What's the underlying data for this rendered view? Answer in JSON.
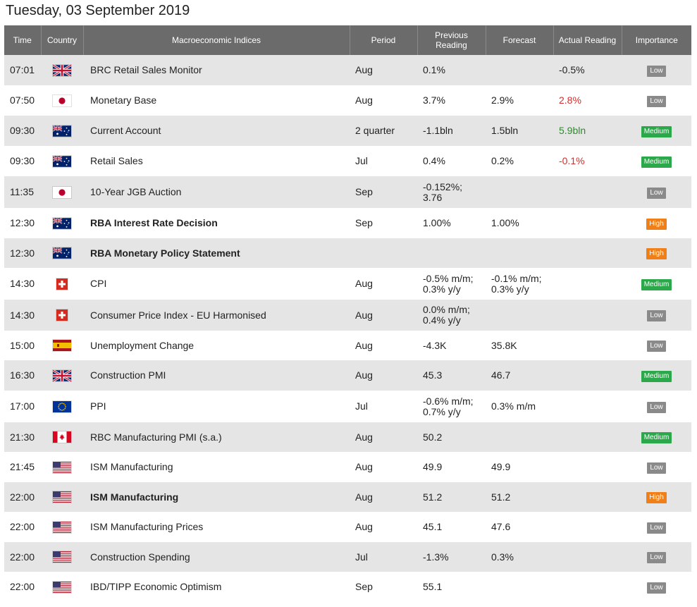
{
  "page": {
    "title": "Tuesday, 03 September 2019"
  },
  "colors": {
    "header_bg": "#6b6b6b",
    "row_alt": "#e5e5e5",
    "negative": "#d12f2f",
    "positive": "#2e8b2e",
    "low": "#8a8a8a",
    "medium": "#2aa84a",
    "high": "#f07f17"
  },
  "table": {
    "headers": {
      "time": "Time",
      "country": "Country",
      "index": "Macroeconomic Indices",
      "period": "Period",
      "previous": "Previous Reading",
      "forecast": "Forecast",
      "actual": "Actual Reading",
      "importance": "Importance"
    },
    "rows": [
      {
        "time": "07:01",
        "flag": "uk",
        "name": "BRC Retail Sales Monitor",
        "bold": false,
        "period": "Aug",
        "previous": "0.1%",
        "forecast": "",
        "actual": "-0.5%",
        "actual_color": "",
        "importance": "Low"
      },
      {
        "time": "07:50",
        "flag": "japan",
        "name": "Monetary Base",
        "bold": false,
        "period": "Aug",
        "previous": "3.7%",
        "forecast": "2.9%",
        "actual": "2.8%",
        "actual_color": "neg",
        "importance": "Low"
      },
      {
        "time": "09:30",
        "flag": "australia",
        "name": "Current Account",
        "bold": false,
        "period": "2 quarter",
        "previous": "-1.1bln",
        "forecast": "1.5bln",
        "actual": "5.9bln",
        "actual_color": "pos",
        "importance": "Medium"
      },
      {
        "time": "09:30",
        "flag": "australia",
        "name": "Retail Sales",
        "bold": false,
        "period": "Jul",
        "previous": "0.4%",
        "forecast": "0.2%",
        "actual": "-0.1%",
        "actual_color": "neg",
        "importance": "Medium"
      },
      {
        "time": "11:35",
        "flag": "japan",
        "name": "10-Year JGB Auction",
        "bold": false,
        "period": "Sep",
        "previous": "-0.152%;\n3.76",
        "forecast": "",
        "actual": "",
        "actual_color": "",
        "importance": "Low"
      },
      {
        "time": "12:30",
        "flag": "australia",
        "name": "RBA Interest Rate Decision",
        "bold": true,
        "period": "Sep",
        "previous": "1.00%",
        "forecast": "1.00%",
        "actual": "",
        "actual_color": "",
        "importance": "High"
      },
      {
        "time": "12:30",
        "flag": "australia",
        "name": "RBA Monetary Policy Statement",
        "bold": true,
        "period": "",
        "previous": "",
        "forecast": "",
        "actual": "",
        "actual_color": "",
        "importance": "High"
      },
      {
        "time": "14:30",
        "flag": "switzerland",
        "name": "CPI",
        "bold": false,
        "period": "Aug",
        "previous": "-0.5% m/m;\n0.3% y/y",
        "forecast": "-0.1% m/m;\n0.3% y/y",
        "actual": "",
        "actual_color": "",
        "importance": "Medium"
      },
      {
        "time": "14:30",
        "flag": "switzerland",
        "name": "Consumer Price Index - EU Harmonised",
        "bold": false,
        "period": "Aug",
        "previous": "0.0% m/m;\n0.4% y/y",
        "forecast": "",
        "actual": "",
        "actual_color": "",
        "importance": "Low"
      },
      {
        "time": "15:00",
        "flag": "spain",
        "name": "Unemployment Change",
        "bold": false,
        "period": "Aug",
        "previous": "-4.3K",
        "forecast": "35.8K",
        "actual": "",
        "actual_color": "",
        "importance": "Low"
      },
      {
        "time": "16:30",
        "flag": "uk",
        "name": "Construction PMI",
        "bold": false,
        "period": "Aug",
        "previous": "45.3",
        "forecast": "46.7",
        "actual": "",
        "actual_color": "",
        "importance": "Medium"
      },
      {
        "time": "17:00",
        "flag": "eu",
        "name": "PPI",
        "bold": false,
        "period": "Jul",
        "previous": "-0.6% m/m;\n0.7% y/y",
        "forecast": "0.3% m/m",
        "actual": "",
        "actual_color": "",
        "importance": "Low"
      },
      {
        "time": "21:30",
        "flag": "canada",
        "name": "RBC Manufacturing PMI (s.a.)",
        "bold": false,
        "period": "Aug",
        "previous": "50.2",
        "forecast": "",
        "actual": "",
        "actual_color": "",
        "importance": "Medium"
      },
      {
        "time": "21:45",
        "flag": "usa",
        "name": "ISM Manufacturing",
        "bold": false,
        "period": "Aug",
        "previous": "49.9",
        "forecast": "49.9",
        "actual": "",
        "actual_color": "",
        "importance": "Low"
      },
      {
        "time": "22:00",
        "flag": "usa",
        "name": "ISM Manufacturing",
        "bold": true,
        "period": "Aug",
        "previous": "51.2",
        "forecast": "51.2",
        "actual": "",
        "actual_color": "",
        "importance": "High"
      },
      {
        "time": "22:00",
        "flag": "usa",
        "name": "ISM Manufacturing Prices",
        "bold": false,
        "period": "Aug",
        "previous": "45.1",
        "forecast": "47.6",
        "actual": "",
        "actual_color": "",
        "importance": "Low"
      },
      {
        "time": "22:00",
        "flag": "usa",
        "name": "Construction Spending",
        "bold": false,
        "period": "Jul",
        "previous": "-1.3%",
        "forecast": "0.3%",
        "actual": "",
        "actual_color": "",
        "importance": "Low"
      },
      {
        "time": "22:00",
        "flag": "usa",
        "name": "IBD/TIPP Economic Optimism",
        "bold": false,
        "period": "Sep",
        "previous": "55.1",
        "forecast": "",
        "actual": "",
        "actual_color": "",
        "importance": "Low"
      }
    ]
  }
}
